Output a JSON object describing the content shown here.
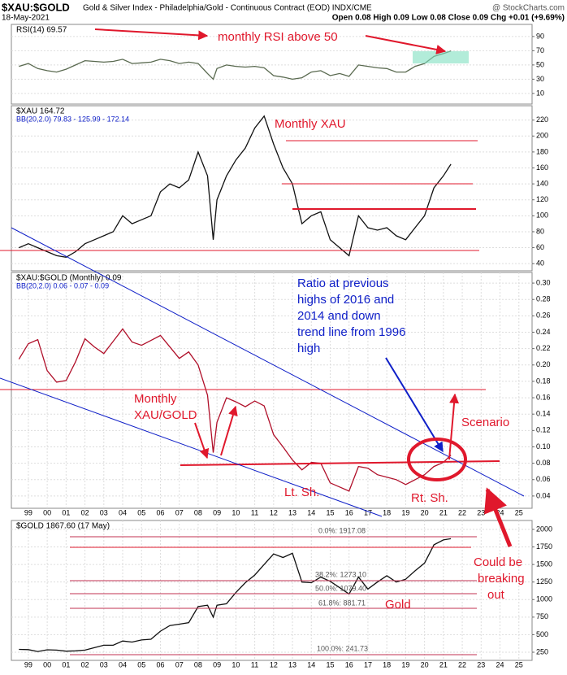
{
  "header": {
    "symbol": "$XAU:$GOLD",
    "description": "Gold & Silver Index - Philadelphia/Gold - Continuous Contract (EOD) INDX/CME",
    "source": "@ StockCharts.com",
    "date": "18-May-2021",
    "quote": "Open 0.08 High 0.09 Low 0.08 Close 0.09 Chg +0.01 (+9.69%)"
  },
  "chart_data": [
    {
      "type": "line",
      "legend": [
        "RSI(14) 69.57"
      ],
      "color": "#5a6a50",
      "xlim": [
        1998.1,
        2025.7
      ],
      "ylim": [
        -5,
        107
      ],
      "yticks": [
        10,
        30,
        50,
        70,
        90
      ],
      "grid": true,
      "x": [
        1998.5,
        1999,
        1999.5,
        2000,
        2000.5,
        2001,
        2001.5,
        2002,
        2002.5,
        2003,
        2003.5,
        2004,
        2004.5,
        2005,
        2005.5,
        2006,
        2006.5,
        2007,
        2007.5,
        2008,
        2008.5,
        2008.8,
        2009,
        2009.5,
        2010,
        2010.5,
        2011,
        2011.5,
        2012,
        2012.5,
        2013,
        2013.5,
        2014,
        2014.5,
        2015,
        2015.5,
        2016,
        2016.5,
        2017,
        2017.5,
        2018,
        2018.5,
        2019,
        2019.5,
        2020,
        2020.5,
        2021,
        2021.4
      ],
      "values": [
        48,
        52,
        45,
        42,
        40,
        44,
        50,
        56,
        55,
        54,
        55,
        58,
        52,
        53,
        54,
        58,
        56,
        52,
        54,
        52,
        38,
        30,
        45,
        50,
        48,
        47,
        48,
        46,
        35,
        33,
        30,
        32,
        40,
        42,
        35,
        38,
        34,
        50,
        48,
        46,
        45,
        40,
        40,
        48,
        52,
        62,
        66,
        69.57
      ]
    },
    {
      "type": "line",
      "legend": [
        "$XAU 164.72",
        "BB(20,2.0) 79.83 - 125.99 - 172.14"
      ],
      "color": "#111111",
      "xlim": [
        1998.1,
        2025.7
      ],
      "ylim": [
        31,
        238
      ],
      "yticks": [
        40,
        60,
        80,
        100,
        120,
        140,
        160,
        180,
        200,
        220
      ],
      "grid": true,
      "x": [
        1998.5,
        1999,
        1999.5,
        2000,
        2000.5,
        2001,
        2001.5,
        2002,
        2002.5,
        2003,
        2003.5,
        2004,
        2004.5,
        2005,
        2005.5,
        2006,
        2006.5,
        2007,
        2007.5,
        2008,
        2008.5,
        2008.8,
        2009,
        2009.5,
        2010,
        2010.5,
        2011,
        2011.5,
        2012,
        2012.5,
        2013,
        2013.5,
        2014,
        2014.5,
        2015,
        2015.5,
        2016,
        2016.5,
        2017,
        2017.5,
        2018,
        2018.5,
        2019,
        2019.5,
        2020,
        2020.5,
        2021,
        2021.4
      ],
      "values": [
        60,
        65,
        60,
        55,
        50,
        48,
        55,
        65,
        70,
        75,
        80,
        100,
        90,
        95,
        100,
        130,
        140,
        135,
        145,
        180,
        150,
        70,
        120,
        150,
        170,
        185,
        210,
        225,
        190,
        160,
        140,
        90,
        100,
        105,
        70,
        60,
        50,
        100,
        85,
        82,
        85,
        75,
        70,
        85,
        100,
        135,
        150,
        164.72
      ]
    },
    {
      "type": "line",
      "legend": [
        "$XAU:$GOLD (Monthly) 0.09",
        "BB(20,2.0) 0.06 - 0.07 - 0.09"
      ],
      "color": "#b0102a",
      "xlim": [
        1998.1,
        2025.7
      ],
      "ylim": [
        0.025,
        0.313
      ],
      "yticks": [
        0.04,
        0.06,
        0.08,
        {
          "value": 0.1,
          "label": "0.10"
        },
        0.12,
        0.14,
        0.16,
        0.18,
        {
          "value": 0.2,
          "label": "0.20"
        },
        0.22,
        0.24,
        0.26,
        0.28,
        {
          "value": 0.3,
          "label": "0.30"
        }
      ],
      "grid": true,
      "xticks": [
        {
          "value": 1999,
          "label": "99"
        },
        {
          "value": 2000,
          "label": "00"
        },
        {
          "value": 2001,
          "label": "01"
        },
        {
          "value": 2002,
          "label": "02"
        },
        {
          "value": 2003,
          "label": "03"
        },
        {
          "value": 2004,
          "label": "04"
        },
        {
          "value": 2005,
          "label": "05"
        },
        {
          "value": 2006,
          "label": "06"
        },
        {
          "value": 2007,
          "label": "07"
        },
        {
          "value": 2008,
          "label": "08"
        },
        {
          "value": 2009,
          "label": "09"
        },
        {
          "value": 2010,
          "label": "10"
        },
        {
          "value": 2011,
          "label": "11"
        },
        {
          "value": 2012,
          "label": "12"
        },
        {
          "value": 2013,
          "label": "13"
        },
        {
          "value": 2014,
          "label": "14"
        },
        {
          "value": 2015,
          "label": "15"
        },
        {
          "value": 2016,
          "label": "16"
        },
        {
          "value": 2017,
          "label": "17"
        },
        {
          "value": 2018,
          "label": "18"
        },
        {
          "value": 2019,
          "label": "19"
        },
        {
          "value": 2020,
          "label": "20"
        },
        {
          "value": 2021,
          "label": "21"
        },
        {
          "value": 2022,
          "label": "22"
        },
        {
          "value": 2023,
          "label": "23"
        },
        {
          "value": 2024,
          "label": "24"
        },
        {
          "value": 2025,
          "label": "25"
        }
      ],
      "x": [
        1998.5,
        1999,
        1999.5,
        2000,
        2000.5,
        2001,
        2001.5,
        2002,
        2002.5,
        2003,
        2003.5,
        2004,
        2004.5,
        2005,
        2005.5,
        2006,
        2006.5,
        2007,
        2007.5,
        2008,
        2008.5,
        2008.8,
        2009,
        2009.5,
        2010,
        2010.5,
        2011,
        2011.5,
        2012,
        2012.5,
        2013,
        2013.5,
        2014,
        2014.5,
        2015,
        2015.5,
        2016,
        2016.5,
        2017,
        2017.5,
        2018,
        2018.5,
        2019,
        2019.5,
        2020,
        2020.5,
        2021,
        2021.4
      ],
      "values": [
        0.207,
        0.226,
        0.231,
        0.193,
        0.179,
        0.181,
        0.204,
        0.232,
        0.222,
        0.214,
        0.229,
        0.244,
        0.228,
        0.224,
        0.23,
        0.236,
        0.222,
        0.208,
        0.216,
        0.2,
        0.163,
        0.093,
        0.13,
        0.16,
        0.155,
        0.149,
        0.156,
        0.15,
        0.115,
        0.1,
        0.084,
        0.072,
        0.081,
        0.08,
        0.056,
        0.051,
        0.046,
        0.076,
        0.074,
        0.066,
        0.063,
        0.06,
        0.054,
        0.06,
        0.066,
        0.076,
        0.081,
        0.09
      ]
    },
    {
      "type": "line",
      "legend": [
        "$GOLD 1867.60 (17 May)"
      ],
      "color": "#111111",
      "xlim": [
        1998.1,
        2025.7
      ],
      "ylim": [
        134,
        2127
      ],
      "yticks": [
        250,
        500,
        750,
        1000,
        {
          "value": 1250,
          "label": "1250"
        },
        1500,
        1750,
        2000
      ],
      "grid": true,
      "xticks": [
        {
          "value": 1999,
          "label": "99"
        },
        {
          "value": 2000,
          "label": "00"
        },
        {
          "value": 2001,
          "label": "01"
        },
        {
          "value": 2002,
          "label": "02"
        },
        {
          "value": 2003,
          "label": "03"
        },
        {
          "value": 2004,
          "label": "04"
        },
        {
          "value": 2005,
          "label": "05"
        },
        {
          "value": 2006,
          "label": "06"
        },
        {
          "value": 2007,
          "label": "07"
        },
        {
          "value": 2008,
          "label": "08"
        },
        {
          "value": 2009,
          "label": "09"
        },
        {
          "value": 2010,
          "label": "10"
        },
        {
          "value": 2011,
          "label": "11"
        },
        {
          "value": 2012,
          "label": "12"
        },
        {
          "value": 2013,
          "label": "13"
        },
        {
          "value": 2014,
          "label": "14"
        },
        {
          "value": 2015,
          "label": "15"
        },
        {
          "value": 2016,
          "label": "16"
        },
        {
          "value": 2017,
          "label": "17"
        },
        {
          "value": 2018,
          "label": "18"
        },
        {
          "value": 2019,
          "label": "19"
        },
        {
          "value": 2020,
          "label": "20"
        },
        {
          "value": 2021,
          "label": "21"
        },
        {
          "value": 2022,
          "label": "22"
        },
        {
          "value": 2023,
          "label": "23"
        },
        {
          "value": 2024,
          "label": "24"
        },
        {
          "value": 2025,
          "label": "25"
        }
      ],
      "x": [
        1998.5,
        1999,
        1999.5,
        2000,
        2000.5,
        2001,
        2001.5,
        2002,
        2002.5,
        2003,
        2003.5,
        2004,
        2004.5,
        2005,
        2005.5,
        2006,
        2006.5,
        2007,
        2007.5,
        2008,
        2008.5,
        2008.8,
        2009,
        2009.5,
        2010,
        2010.5,
        2011,
        2011.5,
        2012,
        2012.5,
        2013,
        2013.5,
        2014,
        2014.5,
        2015,
        2015.5,
        2016,
        2016.5,
        2017,
        2017.5,
        2018,
        2018.5,
        2019,
        2019.5,
        2020,
        2020.5,
        2021,
        2021.4
      ],
      "values": [
        290,
        287,
        260,
        285,
        280,
        265,
        270,
        280,
        315,
        350,
        350,
        410,
        395,
        425,
        435,
        550,
        630,
        650,
        670,
        900,
        920,
        750,
        920,
        940,
        1100,
        1240,
        1350,
        1500,
        1650,
        1600,
        1660,
        1250,
        1240,
        1320,
        1260,
        1170,
        1080,
        1320,
        1150,
        1250,
        1340,
        1250,
        1290,
        1410,
        1520,
        1780,
        1850,
        1867.6
      ]
    }
  ],
  "fib": [
    "0.0%: 1917.08",
    "38.2%: 1273.10",
    "50.0%: 1079.40",
    "61.8%: 881.71",
    "100.0%: 241.73"
  ],
  "annotations": {
    "rsi": "monthly RSI above 50",
    "xau": "Monthly XAU",
    "ratio_note": [
      "Ratio at previous",
      "highs of 2016 and",
      "2014 and down",
      "trend line from 1996",
      "high"
    ],
    "ratio_label": [
      "Monthly",
      "XAU/GOLD"
    ],
    "scenario": "Scenario",
    "left_shoulder": "Lt. Sh.",
    "right_shoulder": "Rt. Sh.",
    "breakout": [
      "Could be",
      "breaking",
      "out"
    ],
    "gold": "Gold"
  }
}
